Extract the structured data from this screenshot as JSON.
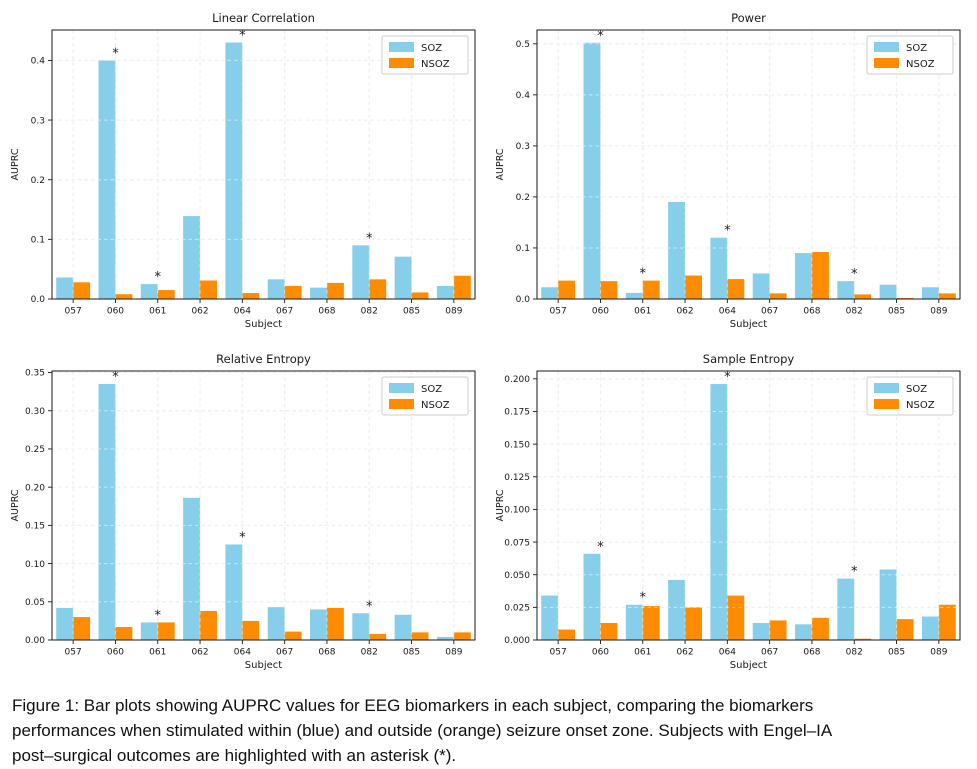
{
  "figure": {
    "caption": {
      "line1": "Figure 1: Bar plots showing AUPRC values for EEG biomarkers in each subject, comparing the biomarkers",
      "line2": "performances when stimulated within (blue) and outside (orange) seizure onset zone. Subjects with Engel–IA",
      "line3": "post–surgical outcomes are highlighted with an asterisk (*)."
    }
  },
  "colors": {
    "soz": "#87CEEB",
    "nsoz": "#FF8C00",
    "grid": "#DCDCDC",
    "text": "#1A1A1A",
    "legend_border": "#CCCCCC"
  },
  "chart_data": [
    {
      "type": "bar",
      "title": "Linear Correlation",
      "xlabel": "Subject",
      "ylabel": "AUPRC",
      "categories": [
        "057",
        "060",
        "061",
        "062",
        "064",
        "067",
        "068",
        "082",
        "085",
        "089"
      ],
      "series": [
        {
          "name": "SOZ",
          "color": "#87CEEB",
          "values": [
            0.036,
            0.4,
            0.025,
            0.139,
            0.43,
            0.033,
            0.019,
            0.09,
            0.071,
            0.022
          ]
        },
        {
          "name": "NSOZ",
          "color": "#FF8C00",
          "values": [
            0.028,
            0.008,
            0.015,
            0.031,
            0.01,
            0.022,
            0.027,
            0.033,
            0.011,
            0.039
          ]
        }
      ],
      "asterisks": [
        "060",
        "061",
        "064",
        "082"
      ],
      "ylim": [
        0,
        0.451
      ],
      "yticks": [
        0.0,
        0.1,
        0.2,
        0.3,
        0.4
      ],
      "ydecimals": 1,
      "grid": true,
      "legend_position": "top-right"
    },
    {
      "type": "bar",
      "title": "Power",
      "xlabel": "Subject",
      "ylabel": "AUPRC",
      "categories": [
        "057",
        "060",
        "061",
        "062",
        "064",
        "067",
        "068",
        "082",
        "085",
        "089"
      ],
      "series": [
        {
          "name": "SOZ",
          "color": "#87CEEB",
          "values": [
            0.023,
            0.502,
            0.012,
            0.19,
            0.12,
            0.05,
            0.09,
            0.035,
            0.028,
            0.023
          ]
        },
        {
          "name": "NSOZ",
          "color": "#FF8C00",
          "values": [
            0.036,
            0.035,
            0.036,
            0.046,
            0.039,
            0.011,
            0.092,
            0.009,
            0.002,
            0.011
          ]
        }
      ],
      "asterisks": [
        "060",
        "061",
        "064",
        "082"
      ],
      "ylim": [
        0,
        0.527
      ],
      "yticks": [
        0.0,
        0.1,
        0.2,
        0.3,
        0.4,
        0.5
      ],
      "ydecimals": 1,
      "grid": true,
      "legend_position": "top-right"
    },
    {
      "type": "bar",
      "title": "Relative Entropy",
      "xlabel": "Subject",
      "ylabel": "AUPRC",
      "categories": [
        "057",
        "060",
        "061",
        "062",
        "064",
        "067",
        "068",
        "082",
        "085",
        "089"
      ],
      "series": [
        {
          "name": "SOZ",
          "color": "#87CEEB",
          "values": [
            0.042,
            0.335,
            0.023,
            0.186,
            0.125,
            0.043,
            0.04,
            0.035,
            0.033,
            0.004
          ]
        },
        {
          "name": "NSOZ",
          "color": "#FF8C00",
          "values": [
            0.03,
            0.017,
            0.023,
            0.038,
            0.025,
            0.011,
            0.042,
            0.008,
            0.01,
            0.01
          ]
        }
      ],
      "asterisks": [
        "060",
        "061",
        "064",
        "082"
      ],
      "ylim": [
        0,
        0.352
      ],
      "yticks": [
        0.0,
        0.05,
        0.1,
        0.15,
        0.2,
        0.25,
        0.3,
        0.35
      ],
      "ydecimals": 2,
      "grid": true,
      "legend_position": "top-right"
    },
    {
      "type": "bar",
      "title": "Sample Entropy",
      "xlabel": "Subject",
      "ylabel": "AUPRC",
      "categories": [
        "057",
        "060",
        "061",
        "062",
        "064",
        "067",
        "068",
        "082",
        "085",
        "089"
      ],
      "series": [
        {
          "name": "SOZ",
          "color": "#87CEEB",
          "values": [
            0.034,
            0.066,
            0.027,
            0.046,
            0.196,
            0.013,
            0.012,
            0.047,
            0.054,
            0.018
          ]
        },
        {
          "name": "NSOZ",
          "color": "#FF8C00",
          "values": [
            0.008,
            0.013,
            0.026,
            0.025,
            0.034,
            0.015,
            0.017,
            0.001,
            0.016,
            0.027
          ]
        }
      ],
      "asterisks": [
        "060",
        "061",
        "064",
        "082"
      ],
      "ylim": [
        0,
        0.206
      ],
      "yticks": [
        0.0,
        0.025,
        0.05,
        0.075,
        0.1,
        0.125,
        0.15,
        0.175,
        0.2
      ],
      "ydecimals": 3,
      "grid": true,
      "legend_position": "top-right"
    }
  ]
}
